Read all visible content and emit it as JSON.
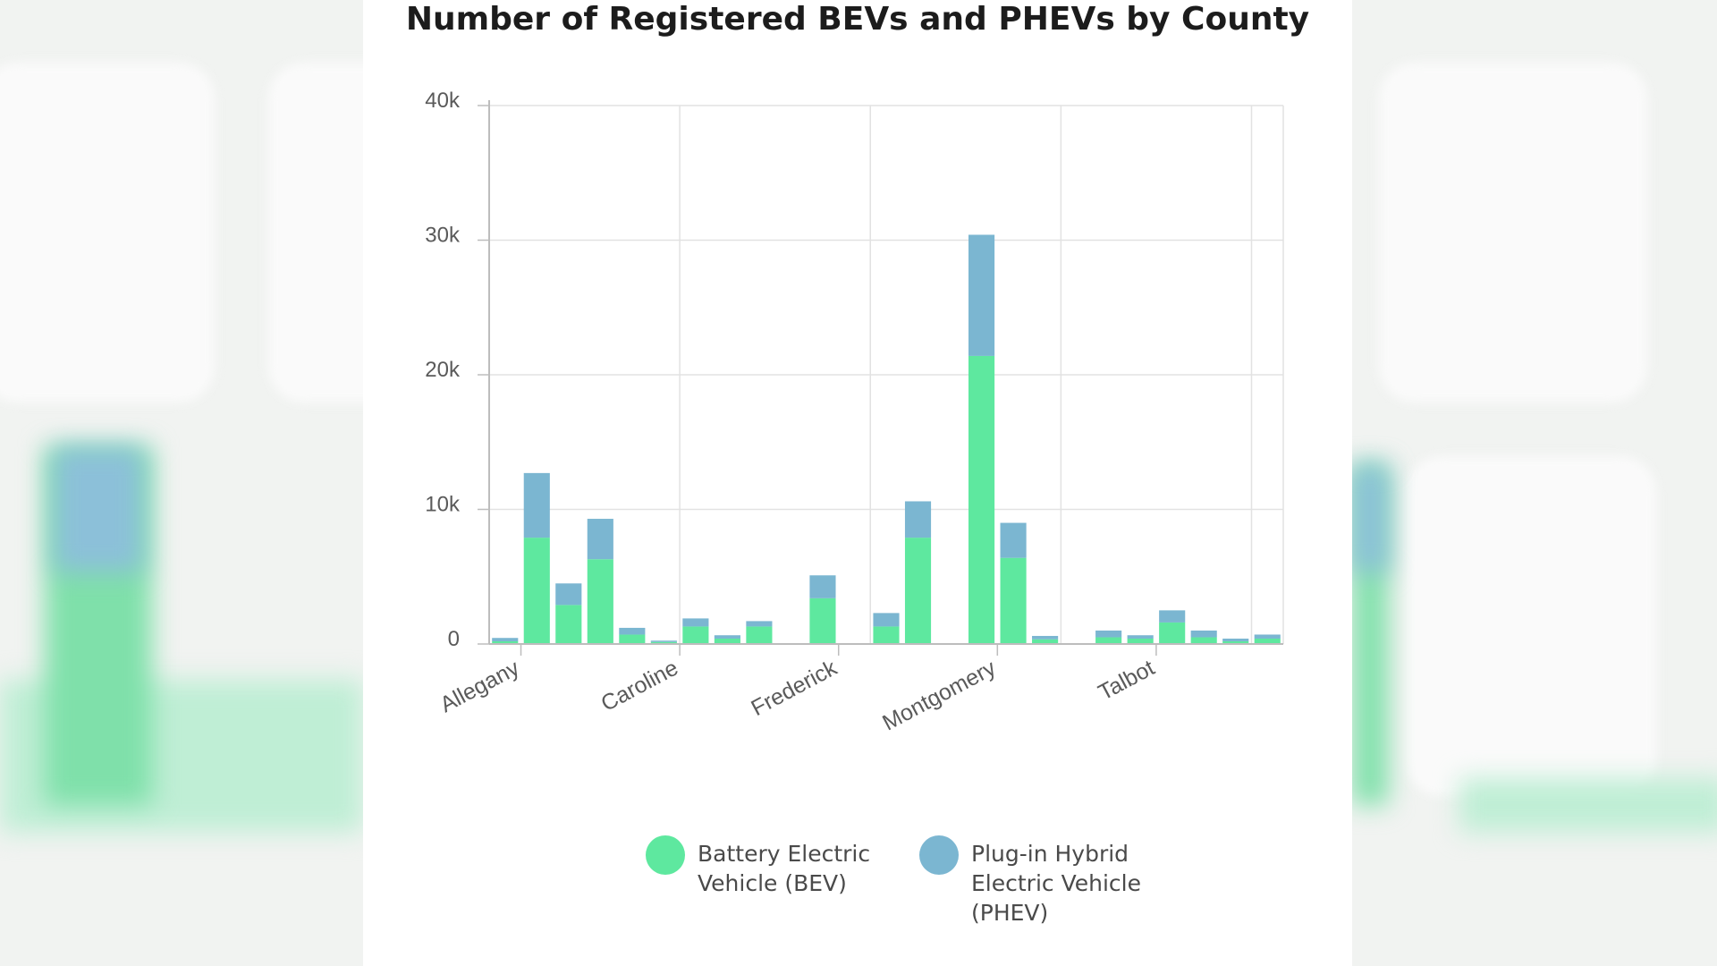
{
  "colors": {
    "bev": "#5ee89f",
    "phev": "#7bb6d1",
    "grid": "#e2e2e2",
    "axis": "#bdbdbd",
    "text": "#5a5a5a"
  },
  "chart_data": {
    "type": "bar",
    "stacked": true,
    "title": "Number of Registered BEVs and PHEVs by County",
    "xlabel": "",
    "ylabel": "",
    "ylim": [
      0,
      40000
    ],
    "yticks": [
      0,
      10000,
      20000,
      30000,
      40000
    ],
    "ytick_labels": [
      "0",
      "10k",
      "20k",
      "30k",
      "40k"
    ],
    "visible_category_labels": [
      "Allegany",
      "Caroline",
      "Frederick",
      "Montgomery",
      "Talbot"
    ],
    "label_positions": [
      0.5,
      5.5,
      10.5,
      15.5,
      20.5
    ],
    "grid": true,
    "legend_position": "bottom",
    "series": [
      {
        "name": "Battery Electric Vehicle (BEV)",
        "values": [
          200,
          7900,
          2900,
          6300,
          700,
          150,
          1300,
          400,
          1300,
          0,
          3400,
          0,
          1300,
          7900,
          0,
          21400,
          6400,
          350,
          0,
          500,
          400,
          1600,
          500,
          200,
          400
        ]
      },
      {
        "name": "Plug-in Hybrid Electric Vehicle (PHEV)",
        "values": [
          250,
          4800,
          1600,
          3000,
          500,
          100,
          600,
          250,
          400,
          0,
          1700,
          0,
          1000,
          2700,
          0,
          9000,
          2600,
          250,
          0,
          500,
          250,
          900,
          500,
          200,
          300
        ]
      }
    ]
  }
}
